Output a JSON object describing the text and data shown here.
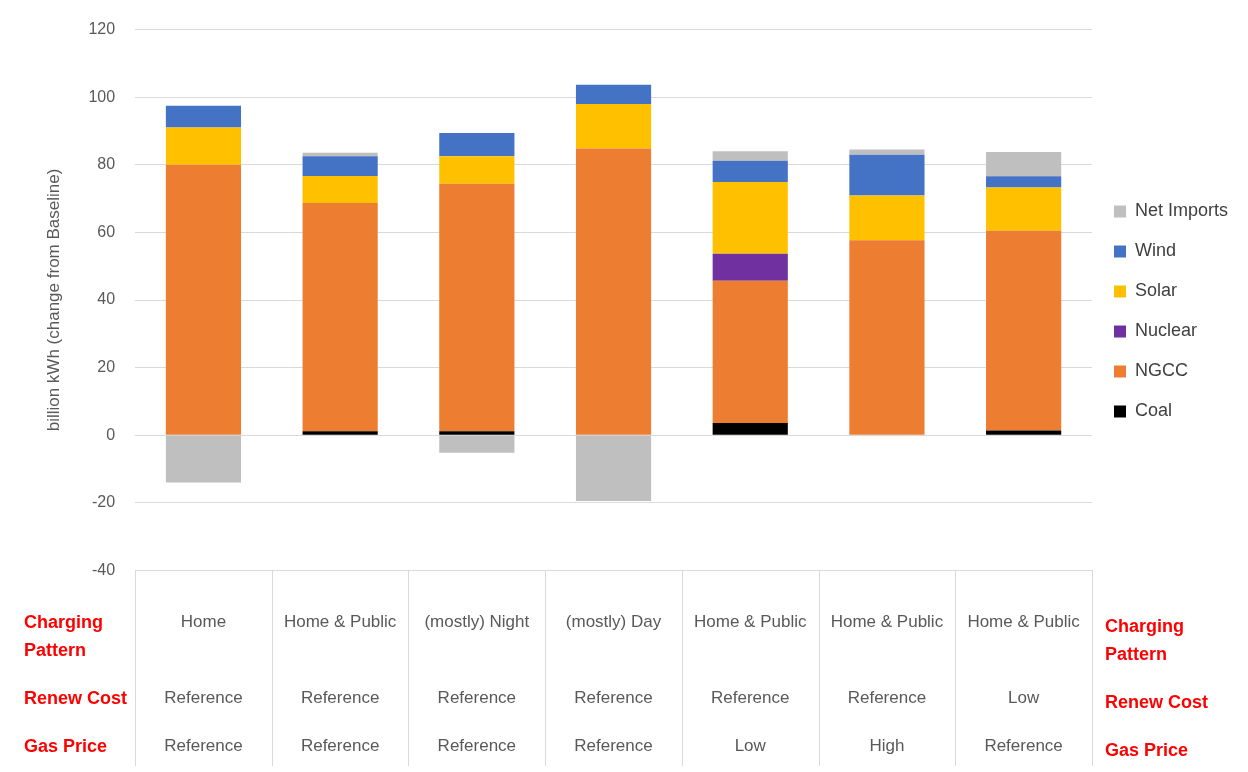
{
  "chart_data": {
    "type": "bar",
    "stacked": true,
    "ylabel": "billion kWh (change from Baseline)",
    "categories": [
      [
        "Home",
        "Reference",
        "Reference"
      ],
      [
        "Home & Public",
        "Reference",
        "Reference"
      ],
      [
        "(mostly) Night",
        "Reference",
        "Reference"
      ],
      [
        "(mostly) Day",
        "Reference",
        "Reference"
      ],
      [
        "Home & Public",
        "Reference",
        "Low"
      ],
      [
        "Home & Public",
        "Reference",
        "High"
      ],
      [
        "Home & Public",
        "Low",
        "Reference"
      ]
    ],
    "series": [
      {
        "name": "Coal",
        "color": "#000000",
        "values": [
          0,
          1.2,
          1.2,
          0,
          3.6,
          0,
          1.4
        ]
      },
      {
        "name": "NGCC",
        "color": "#ed7d31",
        "values": [
          80,
          67.5,
          73.2,
          84.8,
          42.1,
          57.7,
          59.1
        ]
      },
      {
        "name": "Nuclear",
        "color": "#7030a0",
        "values": [
          0,
          0,
          0,
          0,
          8,
          0,
          0
        ]
      },
      {
        "name": "Solar",
        "color": "#ffc000",
        "values": [
          11,
          8,
          8.1,
          13.2,
          21.2,
          13.2,
          12.8
        ]
      },
      {
        "name": "Wind",
        "color": "#4472c4",
        "values": [
          6.5,
          5.8,
          6.9,
          5.7,
          6.3,
          12.1,
          3.3
        ]
      },
      {
        "name": "Net Imports",
        "color": "#bfbfbf",
        "values": [
          -14,
          1.1,
          -5.2,
          -19.5,
          2.8,
          1.5,
          7.2
        ]
      }
    ],
    "ylim": [
      -40,
      120
    ],
    "yticks": [
      -40,
      -20,
      0,
      20,
      40,
      60,
      80,
      100,
      120
    ],
    "grid": "y",
    "legend": "right",
    "annotations": [
      "Charging Pattern",
      "Renew Cost",
      "Gas Price"
    ]
  }
}
